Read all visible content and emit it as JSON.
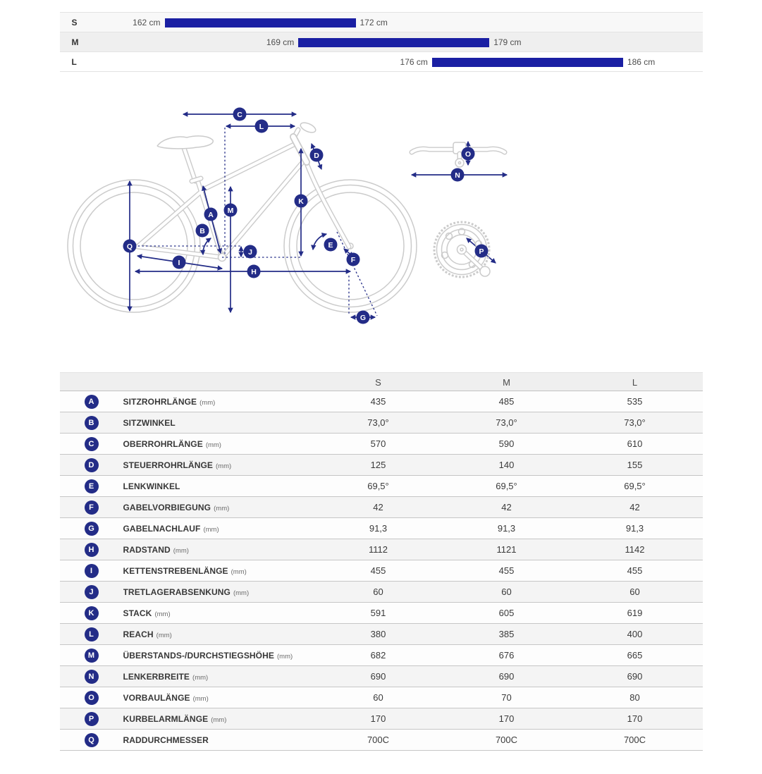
{
  "colors": {
    "bar_blue": "#1a1fa3",
    "navy": "#232c87",
    "header_bg": "#efefef",
    "row_alt": "#f4f4f4"
  },
  "size_chart": {
    "rows": [
      {
        "size": "S",
        "min": 162,
        "max": 172,
        "min_label": "162 cm",
        "max_label": "172 cm"
      },
      {
        "size": "M",
        "min": 169,
        "max": 179,
        "min_label": "169 cm",
        "max_label": "179 cm"
      },
      {
        "size": "L",
        "min": 176,
        "max": 186,
        "min_label": "176 cm",
        "max_label": "186 cm"
      }
    ],
    "scale": {
      "min": 162,
      "max": 190,
      "unit": "cm"
    }
  },
  "geometry_table": {
    "columns": [
      "S",
      "M",
      "L"
    ],
    "rows": [
      {
        "letter": "A",
        "label": "SITZROHRLÄNGE",
        "unit": "(mm)",
        "values": [
          "435",
          "485",
          "535"
        ]
      },
      {
        "letter": "B",
        "label": "SITZWINKEL",
        "unit": "",
        "values": [
          "73,0°",
          "73,0°",
          "73,0°"
        ]
      },
      {
        "letter": "C",
        "label": "OBERROHRLÄNGE",
        "unit": "(mm)",
        "values": [
          "570",
          "590",
          "610"
        ]
      },
      {
        "letter": "D",
        "label": "STEUERROHRLÄNGE",
        "unit": "(mm)",
        "values": [
          "125",
          "140",
          "155"
        ]
      },
      {
        "letter": "E",
        "label": "LENKWINKEL",
        "unit": "",
        "values": [
          "69,5°",
          "69,5°",
          "69,5°"
        ]
      },
      {
        "letter": "F",
        "label": "GABELVORBIEGUNG",
        "unit": "(mm)",
        "values": [
          "42",
          "42",
          "42"
        ]
      },
      {
        "letter": "G",
        "label": "GABELNACHLAUF",
        "unit": "(mm)",
        "values": [
          "91,3",
          "91,3",
          "91,3"
        ]
      },
      {
        "letter": "H",
        "label": "RADSTAND",
        "unit": "(mm)",
        "values": [
          "1112",
          "1121",
          "1142"
        ]
      },
      {
        "letter": "I",
        "label": "KETTENSTREBENLÄNGE",
        "unit": "(mm)",
        "values": [
          "455",
          "455",
          "455"
        ]
      },
      {
        "letter": "J",
        "label": "TRETLAGERABSENKUNG",
        "unit": "(mm)",
        "values": [
          "60",
          "60",
          "60"
        ]
      },
      {
        "letter": "K",
        "label": "STACK",
        "unit": "(mm)",
        "values": [
          "591",
          "605",
          "619"
        ]
      },
      {
        "letter": "L",
        "label": "REACH",
        "unit": "(mm)",
        "values": [
          "380",
          "385",
          "400"
        ]
      },
      {
        "letter": "M",
        "label": "ÜBERSTANDS-/DURCHSTIEGSHÖHE",
        "unit": "(mm)",
        "values": [
          "682",
          "676",
          "665"
        ]
      },
      {
        "letter": "N",
        "label": "LENKERBREITE",
        "unit": "(mm)",
        "values": [
          "690",
          "690",
          "690"
        ]
      },
      {
        "letter": "O",
        "label": "VORBAULÄNGE",
        "unit": "(mm)",
        "values": [
          "60",
          "70",
          "80"
        ]
      },
      {
        "letter": "P",
        "label": "KURBELARMLÄNGE",
        "unit": "(mm)",
        "values": [
          "170",
          "170",
          "170"
        ]
      },
      {
        "letter": "Q",
        "label": "RADDURCHMESSER",
        "unit": "",
        "values": [
          "700C",
          "700C",
          "700C"
        ]
      }
    ]
  },
  "diagram": {
    "badge_letters": [
      "A",
      "B",
      "C",
      "D",
      "E",
      "F",
      "G",
      "H",
      "I",
      "J",
      "K",
      "L",
      "M",
      "N",
      "O",
      "P",
      "Q"
    ]
  }
}
